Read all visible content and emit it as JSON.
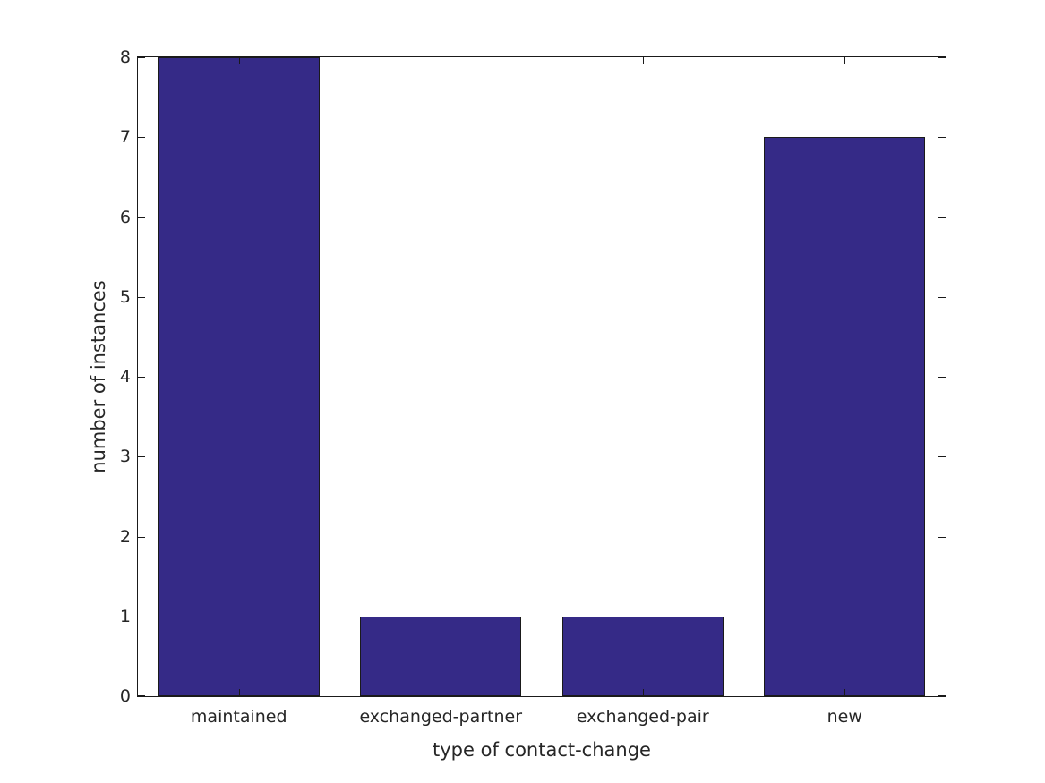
{
  "chart_data": {
    "type": "bar",
    "categories": [
      "maintained",
      "exchanged-partner",
      "exchanged-pair",
      "new"
    ],
    "values": [
      8,
      1,
      1,
      7
    ],
    "title": "",
    "xlabel": "type of contact-change",
    "ylabel": "number of instances",
    "ylim": [
      0,
      8
    ],
    "yticks": [
      0,
      1,
      2,
      3,
      4,
      5,
      6,
      7,
      8
    ],
    "ytick_labels": [
      "0",
      "1",
      "2",
      "3",
      "4",
      "5",
      "6",
      "7",
      "8"
    ],
    "bar_width_fraction": 0.8,
    "bar_color": "#352A87",
    "bar_edge_color": "#1a1a1a",
    "axis_color": "#1a1a1a",
    "text_color": "#262626",
    "background_color": "#ffffff",
    "grid": false,
    "legend": null,
    "box": "ticks on all four sides, pointing inward"
  }
}
